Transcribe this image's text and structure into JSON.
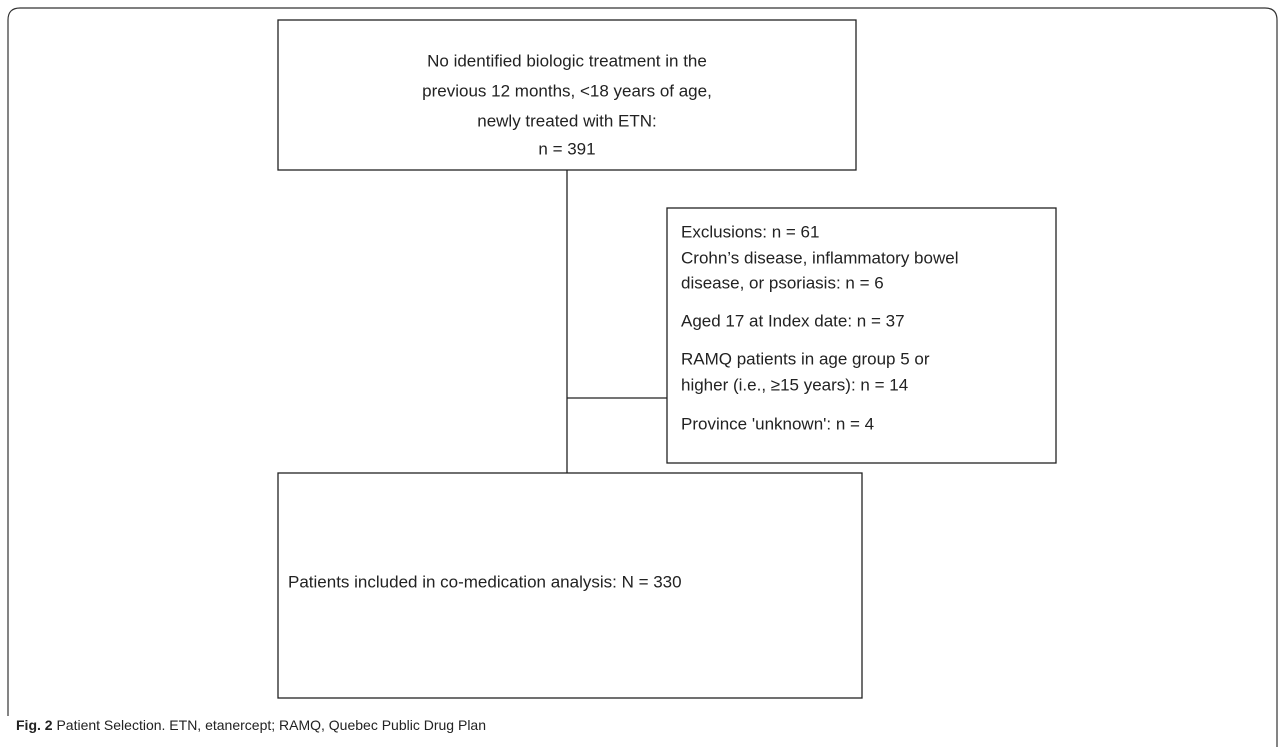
{
  "nodes": [
    {
      "lines": [
        "No identified biologic treatment in the",
        "previous 12 months, <18 years of age,",
        "newly treated with ETN:",
        "n = 391"
      ]
    },
    {
      "lines": [
        "Exclusions: n = 61",
        "Crohn’s disease, inflammatory bowel",
        "disease, or psoriasis: n = 6",
        "Aged 17 at Index date: n = 37",
        "RAMQ patients in age group 5 or",
        "higher (i.e., ≥15 years): n = 14",
        "Province 'unknown': n = 4"
      ]
    },
    {
      "lines": [
        "Patients included in co-medication analysis: N = 330"
      ]
    }
  ],
  "caption": {
    "label": "Fig. 2",
    "text": "Patient Selection. ETN, etanercept; RAMQ, Quebec Public Drug Plan"
  }
}
